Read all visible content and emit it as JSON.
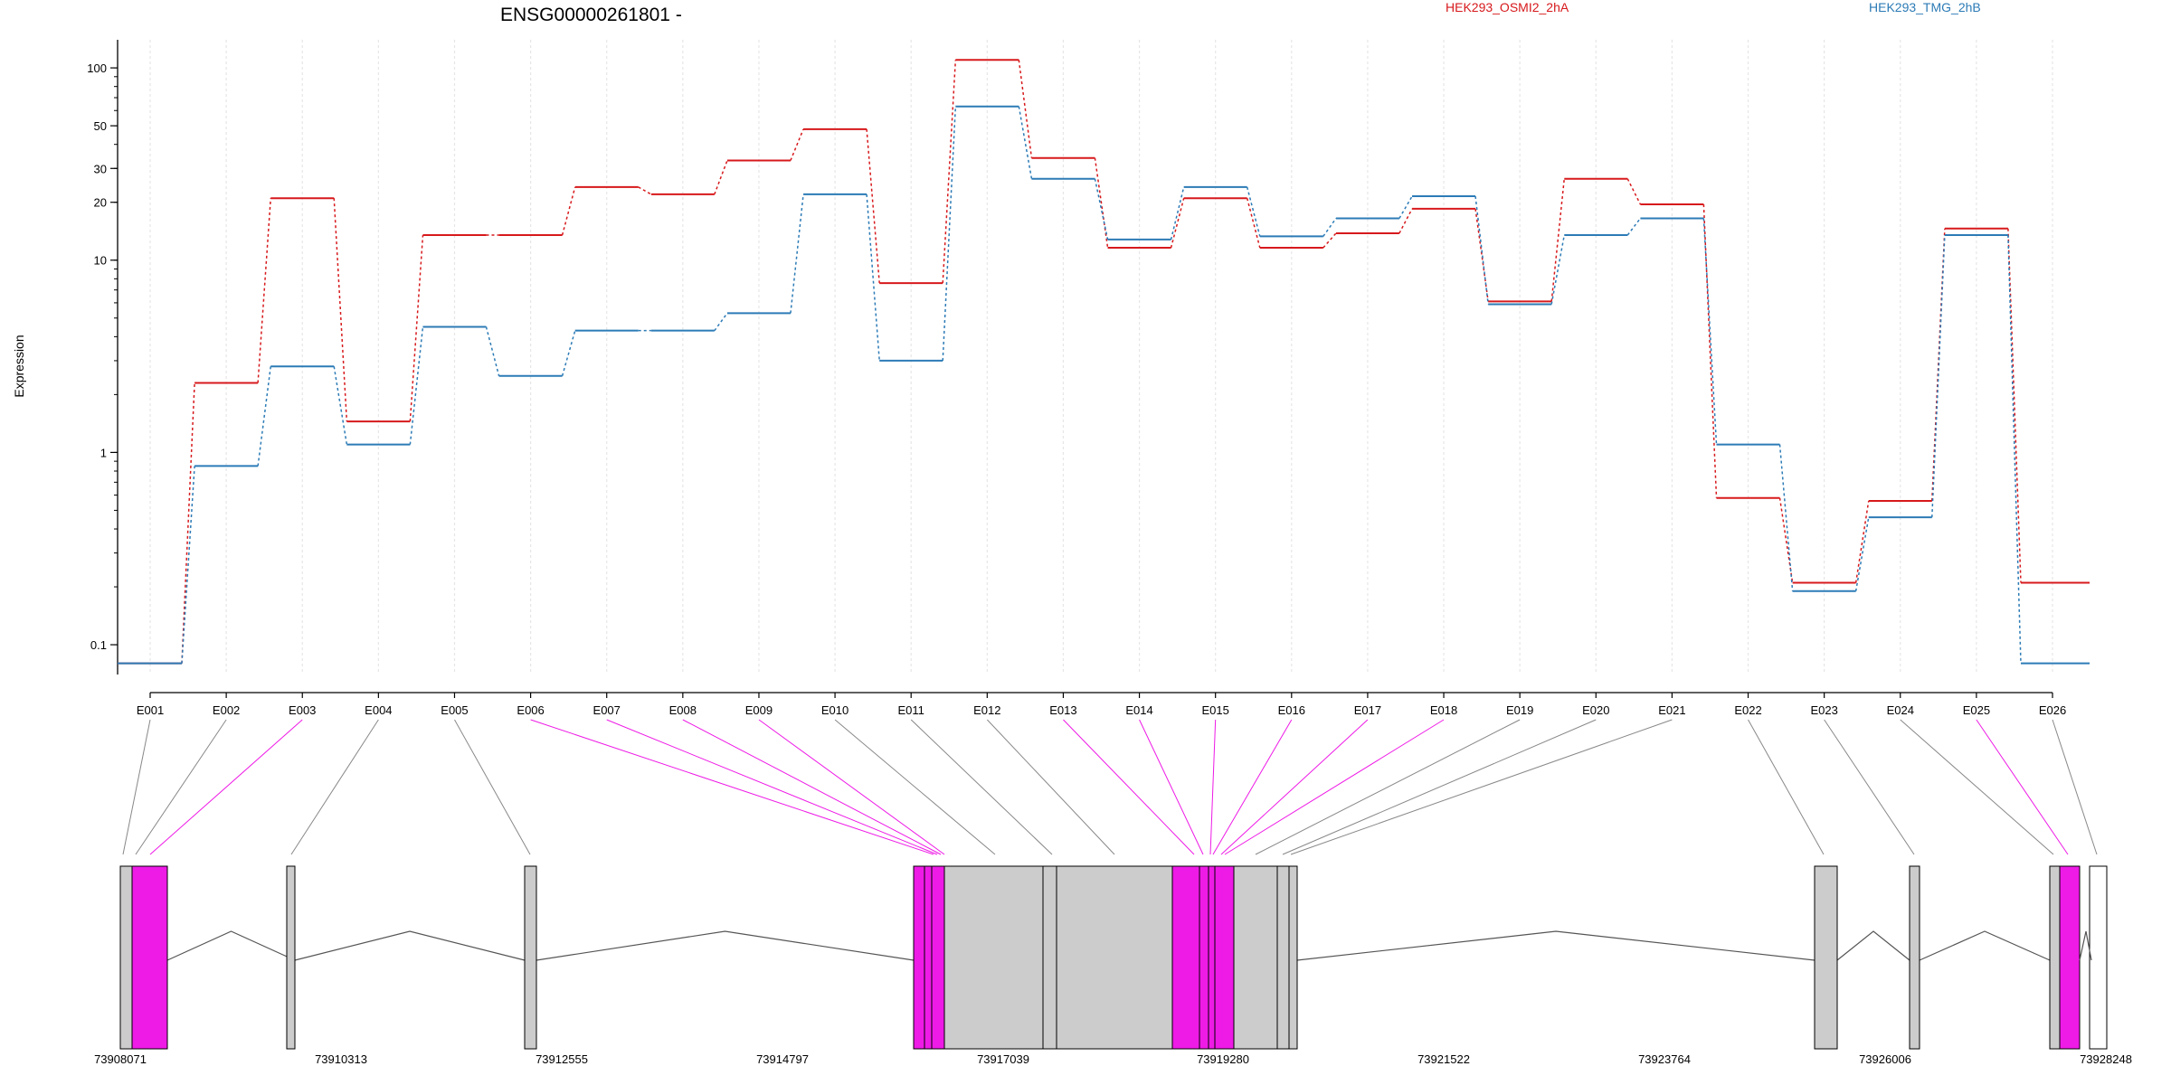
{
  "chart_data": {
    "type": "line",
    "title": "ENSG00000261801 -",
    "ylabel": "Expression",
    "xlabel": "",
    "y_scale": "log",
    "ylim": [
      0.07,
      140
    ],
    "y_ticks": [
      0.1,
      1,
      10,
      20,
      30,
      50,
      100
    ],
    "y_tick_labels": [
      "0.1",
      "1",
      "10",
      "20",
      "30",
      "50",
      "100"
    ],
    "grid": "vertical dotted lines at each exon",
    "legend_placement": "top",
    "categories": [
      "E001",
      "E002",
      "E003",
      "E004",
      "E005",
      "E006",
      "E007",
      "E008",
      "E009",
      "E010",
      "E011",
      "E012",
      "E013",
      "E014",
      "E015",
      "E016",
      "E017",
      "E018",
      "E019",
      "E020",
      "E021",
      "E022",
      "E023",
      "E024",
      "E025",
      "E026"
    ],
    "series": [
      {
        "name": "HEK293_OSMI2_2hA",
        "color": "#d7191c",
        "values": [
          0.08,
          2.3,
          21,
          1.45,
          13.5,
          13.5,
          24,
          22,
          33,
          48,
          7.6,
          110,
          34,
          11.6,
          21,
          11.6,
          13.8,
          18.5,
          6.1,
          26.5,
          19.5,
          0.58,
          0.21,
          0.56,
          14.6,
          0.21
        ]
      },
      {
        "name": "HEK293_TMG_2hB",
        "color": "#2c7bb6",
        "values": [
          0.08,
          0.85,
          2.8,
          1.1,
          4.5,
          2.5,
          4.3,
          4.3,
          5.3,
          22,
          3.0,
          63,
          26.5,
          12.8,
          24,
          13.3,
          16.5,
          21.5,
          5.9,
          13.5,
          16.5,
          1.1,
          0.19,
          0.46,
          13.5,
          0.08
        ]
      }
    ],
    "genomic_coordinate_labels": [
      "73908071",
      "73910313",
      "73912555",
      "73914797",
      "73917039",
      "73919280",
      "73921522",
      "73923764",
      "73926006",
      "73928248"
    ],
    "exon_highlight_color": "#ee1ae6",
    "exon_default_color": "#cccccc",
    "highlighted_exons": [
      "E003",
      "E006",
      "E007",
      "E008",
      "E009",
      "E013",
      "E014",
      "E015",
      "E016",
      "E017",
      "E018",
      "E025"
    ]
  }
}
